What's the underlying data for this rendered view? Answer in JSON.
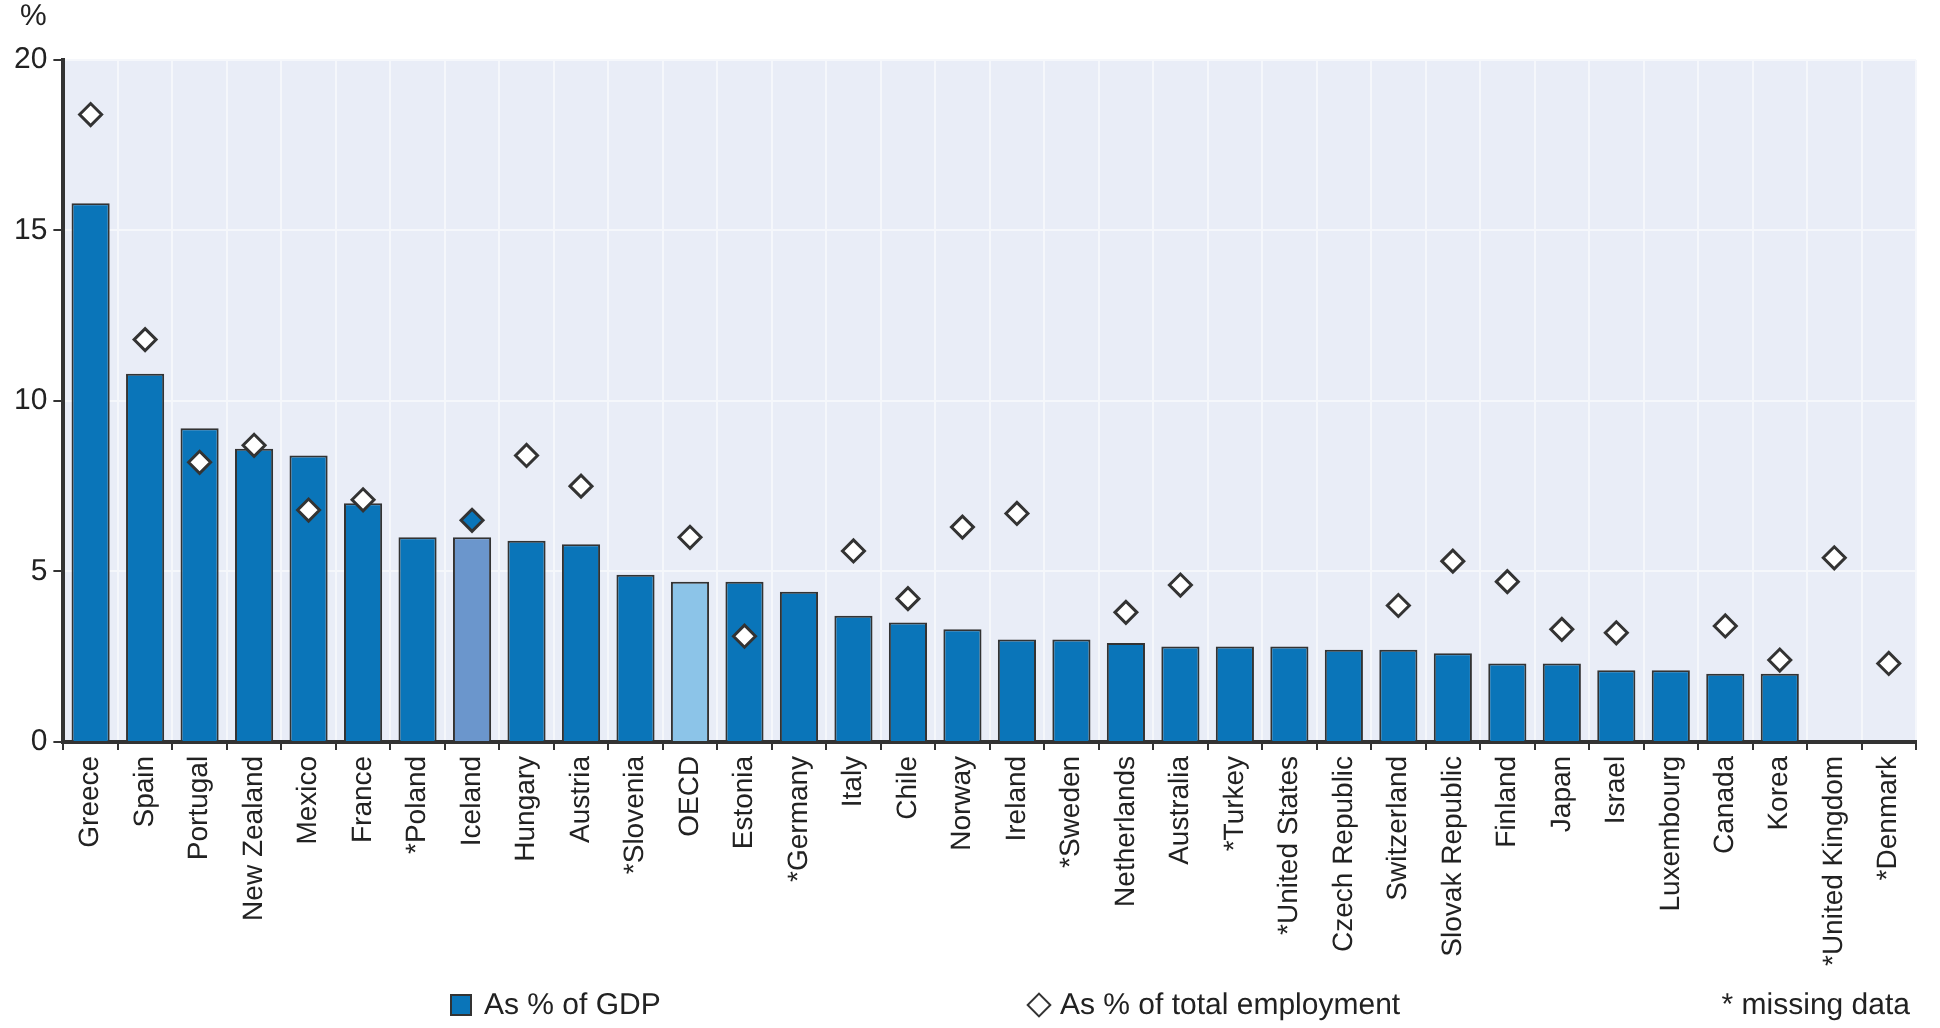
{
  "chart_data": {
    "type": "bar",
    "ylabel": "%",
    "categories": [
      "Greece",
      "Spain",
      "Portugal",
      "New Zealand",
      "Mexico",
      "France",
      "*Poland",
      "Iceland",
      "Hungary",
      "Austria",
      "*Slovenia",
      "OECD",
      "Estonia",
      "*Germany",
      "Italy",
      "Chile",
      "Norway",
      "Ireland",
      "*Sweden",
      "Netherlands",
      "Australia",
      "*Turkey",
      "*United States",
      "Czech Republic",
      "Switzerland",
      "Slovak Republic",
      "Finland",
      "Japan",
      "Israel",
      "Luxembourg",
      "Canada",
      "Korea",
      "*United Kingdom",
      "*Denmark"
    ],
    "series": [
      {
        "name": "As % of GDP",
        "type": "bar",
        "color": "#0a75b9",
        "colors": [
          "#0a75b9",
          "#0a75b9",
          "#0a75b9",
          "#0a75b9",
          "#0a75b9",
          "#0a75b9",
          "#0a75b9",
          "#6b96cc",
          "#0a75b9",
          "#0a75b9",
          "#0a75b9",
          "#8cc4e8",
          "#0a75b9",
          "#0a75b9",
          "#0a75b9",
          "#0a75b9",
          "#0a75b9",
          "#0a75b9",
          "#0a75b9",
          "#0a75b9",
          "#0a75b9",
          "#0a75b9",
          "#0a75b9",
          "#0a75b9",
          "#0a75b9",
          "#0a75b9",
          "#0a75b9",
          "#0a75b9",
          "#0a75b9",
          "#0a75b9",
          "#0a75b9",
          "#0a75b9",
          "#0a75b9",
          "#0a75b9"
        ],
        "values": [
          15.8,
          10.8,
          9.2,
          8.6,
          8.4,
          7.0,
          6.0,
          6.0,
          5.9,
          5.8,
          4.9,
          4.7,
          4.7,
          4.4,
          3.7,
          3.5,
          3.3,
          3.0,
          3.0,
          2.9,
          2.8,
          2.8,
          2.8,
          2.7,
          2.7,
          2.6,
          2.3,
          2.3,
          2.1,
          2.1,
          2.0,
          2.0,
          null,
          null
        ]
      },
      {
        "name": "As % of total employment",
        "type": "scatter",
        "color": "#ffffff",
        "colors": [
          "#ffffff",
          "#ffffff",
          "#ffffff",
          "#ffffff",
          "#ffffff",
          "#ffffff",
          "#ffffff",
          "#0a75b9",
          "#ffffff",
          "#ffffff",
          "#ffffff",
          "#ffffff",
          "#ffffff",
          "#ffffff",
          "#ffffff",
          "#ffffff",
          "#ffffff",
          "#ffffff",
          "#ffffff",
          "#ffffff",
          "#ffffff",
          "#ffffff",
          "#ffffff",
          "#ffffff",
          "#ffffff",
          "#ffffff",
          "#ffffff",
          "#ffffff",
          "#ffffff",
          "#ffffff",
          "#ffffff",
          "#ffffff",
          "#ffffff",
          "#ffffff"
        ],
        "values": [
          18.4,
          11.8,
          8.2,
          8.7,
          6.8,
          7.1,
          null,
          6.5,
          8.4,
          7.5,
          null,
          6.0,
          3.1,
          null,
          5.6,
          4.2,
          6.3,
          6.7,
          null,
          3.8,
          4.6,
          null,
          null,
          null,
          4.0,
          5.3,
          4.7,
          3.3,
          3.2,
          null,
          3.4,
          2.4,
          5.4,
          2.3
        ]
      }
    ],
    "ylim": [
      0,
      20
    ],
    "yticks": [
      0,
      5,
      10,
      15,
      20
    ],
    "grid": true,
    "legend": "bottom",
    "marker": "diamond",
    "annotations": [
      "* missing data"
    ]
  }
}
